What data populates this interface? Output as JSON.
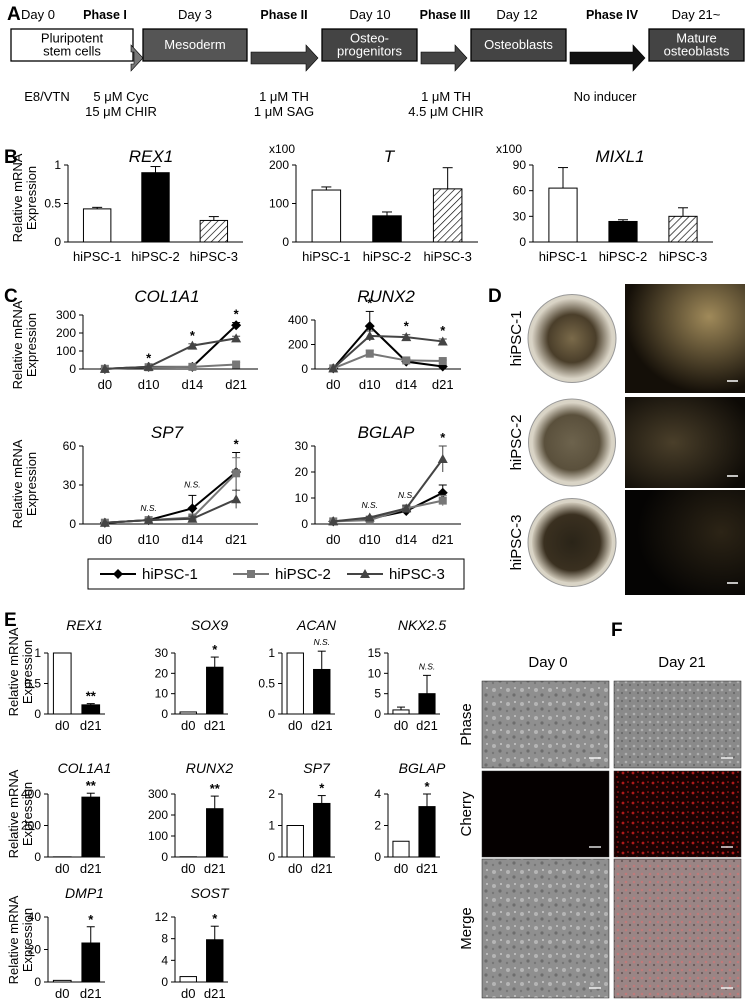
{
  "panel_labels": {
    "A": "A",
    "B": "B",
    "C": "C",
    "D": "D",
    "E": "E",
    "F": "F"
  },
  "flow": {
    "days": [
      "Day 0",
      "Day 3",
      "Day 10",
      "Day 12",
      "Day 21~"
    ],
    "phases": [
      "Phase I",
      "Phase II",
      "Phase III",
      "Phase IV"
    ],
    "boxes": [
      {
        "lines": [
          "Pluripotent",
          "stem cells"
        ]
      },
      {
        "lines": [
          "Mesoderm"
        ]
      },
      {
        "lines": [
          "Osteo-",
          "progenitors"
        ]
      },
      {
        "lines": [
          "Osteoblasts"
        ]
      },
      {
        "lines": [
          "Mature",
          "osteoblasts"
        ]
      }
    ],
    "conditions": [
      {
        "lines": [
          "E8/VTN"
        ]
      },
      {
        "lines": [
          "5 μM Cyc",
          "15 μM CHIR"
        ]
      },
      {
        "lines": [
          "1 μM TH",
          "1 μM SAG"
        ]
      },
      {
        "lines": [
          "1 μM TH",
          "4.5 μM CHIR"
        ]
      },
      {
        "lines": [
          "No inducer"
        ]
      }
    ]
  },
  "ylabel": [
    "Relative mRNA",
    "Expression"
  ],
  "panel_d": {
    "rows": [
      "hiPSC-1",
      "hiPSC-2",
      "hiPSC-3"
    ]
  },
  "panel_f": {
    "columns": [
      "Day 0",
      "Day 21"
    ],
    "rows": [
      "Phase",
      "Cherry",
      "Merge"
    ]
  },
  "chart_data": [
    {
      "panel": "B",
      "type": "bar",
      "title": "REX1",
      "categories": [
        "hiPSC-1",
        "hiPSC-2",
        "hiPSC-3"
      ],
      "values": [
        0.43,
        0.9,
        0.28
      ],
      "errors": [
        0.02,
        0.08,
        0.05
      ],
      "fills": [
        "white",
        "black",
        "hatch"
      ],
      "ylim": [
        0,
        1
      ],
      "yticks": [
        "0",
        "0.5",
        "1"
      ],
      "multiplier": ""
    },
    {
      "panel": "B",
      "type": "bar",
      "title": "T",
      "categories": [
        "hiPSC-1",
        "hiPSC-2",
        "hiPSC-3"
      ],
      "values": [
        135,
        68,
        138
      ],
      "errors": [
        8,
        10,
        55
      ],
      "fills": [
        "white",
        "black",
        "hatch"
      ],
      "ylim": [
        0,
        200
      ],
      "yticks": [
        "0",
        "100",
        "200"
      ],
      "multiplier": "x100"
    },
    {
      "panel": "B",
      "type": "bar",
      "title": "MIXL1",
      "categories": [
        "hiPSC-1",
        "hiPSC-2",
        "hiPSC-3"
      ],
      "values": [
        63,
        24,
        30
      ],
      "errors": [
        24,
        2,
        10
      ],
      "fills": [
        "white",
        "black",
        "hatch"
      ],
      "ylim": [
        0,
        90
      ],
      "yticks": [
        "0",
        "30",
        "60",
        "90"
      ],
      "multiplier": "x100"
    },
    {
      "panel": "C",
      "type": "line",
      "title": "COL1A1",
      "x": [
        "d0",
        "d10",
        "d14",
        "d21"
      ],
      "ylim": [
        0,
        300
      ],
      "yticks": [
        "0",
        "100",
        "200",
        "300"
      ],
      "series": [
        {
          "name": "hiPSC-1",
          "values": [
            1,
            12,
            12,
            243
          ],
          "errors": [
            0,
            3,
            3,
            15
          ]
        },
        {
          "name": "hiPSC-2",
          "values": [
            1,
            10,
            12,
            25
          ],
          "errors": [
            0,
            3,
            3,
            12
          ]
        },
        {
          "name": "hiPSC-3",
          "values": [
            1,
            12,
            130,
            170
          ],
          "errors": [
            0,
            3,
            10,
            12
          ]
        }
      ],
      "annotations": [
        {
          "x": "d10",
          "text": "*"
        },
        {
          "x": "d14",
          "text": "*"
        },
        {
          "x": "d21",
          "text": "*"
        }
      ]
    },
    {
      "panel": "C",
      "type": "line",
      "title": "RUNX2",
      "x": [
        "d0",
        "d10",
        "d14",
        "d21"
      ],
      "ylim": [
        0,
        400
      ],
      "yticks": [
        "0",
        "200",
        "400"
      ],
      "series": [
        {
          "name": "hiPSC-1",
          "values": [
            5,
            350,
            60,
            20
          ],
          "errors": [
            0,
            120,
            20,
            5
          ]
        },
        {
          "name": "hiPSC-2",
          "values": [
            5,
            125,
            70,
            65
          ],
          "errors": [
            0,
            30,
            15,
            8
          ]
        },
        {
          "name": "hiPSC-3",
          "values": [
            5,
            270,
            260,
            225
          ],
          "errors": [
            0,
            40,
            20,
            20
          ]
        }
      ],
      "annotations": [
        {
          "x": "d10",
          "text": "*"
        },
        {
          "x": "d14",
          "text": "*"
        },
        {
          "x": "d21",
          "text": "*"
        }
      ]
    },
    {
      "panel": "C",
      "type": "line",
      "title": "SP7",
      "x": [
        "d0",
        "d10",
        "d14",
        "d21"
      ],
      "ylim": [
        0,
        60
      ],
      "yticks": [
        "0",
        "30",
        "60"
      ],
      "series": [
        {
          "name": "hiPSC-1",
          "values": [
            1,
            3,
            12,
            40
          ],
          "errors": [
            0,
            1,
            10,
            15
          ]
        },
        {
          "name": "hiPSC-2",
          "values": [
            1,
            3,
            5,
            39
          ],
          "errors": [
            0,
            1,
            2,
            12
          ]
        },
        {
          "name": "hiPSC-3",
          "values": [
            1,
            3,
            4,
            19
          ],
          "errors": [
            0,
            1,
            2,
            7
          ]
        }
      ],
      "annotations": [
        {
          "x": "d10",
          "text": "N.S."
        },
        {
          "x": "d14",
          "text": "N.S."
        },
        {
          "x": "d21",
          "text": "*"
        }
      ]
    },
    {
      "panel": "C",
      "type": "line",
      "title": "BGLAP",
      "x": [
        "d0",
        "d10",
        "d14",
        "d21"
      ],
      "ylim": [
        0,
        30
      ],
      "yticks": [
        "0",
        "10",
        "20",
        "30"
      ],
      "series": [
        {
          "name": "hiPSC-1",
          "values": [
            1,
            2,
            5,
            12
          ],
          "errors": [
            0,
            0.5,
            1,
            3
          ]
        },
        {
          "name": "hiPSC-2",
          "values": [
            1,
            1.5,
            6,
            9
          ],
          "errors": [
            0,
            0.5,
            1,
            2
          ]
        },
        {
          "name": "hiPSC-3",
          "values": [
            1,
            2.5,
            6,
            25
          ],
          "errors": [
            0,
            0.5,
            1,
            5
          ]
        }
      ],
      "annotations": [
        {
          "x": "d10",
          "text": "N.S."
        },
        {
          "x": "d14",
          "text": "N.S."
        },
        {
          "x": "d21",
          "text": "*"
        }
      ]
    },
    {
      "panel": "E",
      "type": "bar",
      "title": "REX1",
      "categories": [
        "d0",
        "d21"
      ],
      "values": [
        1,
        0.15
      ],
      "errors": [
        0,
        0.02
      ],
      "ylim": [
        0,
        1
      ],
      "yticks": [
        "0",
        "0.5",
        "1"
      ],
      "annotation": "**"
    },
    {
      "panel": "E",
      "type": "bar",
      "title": "SOX9",
      "categories": [
        "d0",
        "d21"
      ],
      "values": [
        1,
        23
      ],
      "errors": [
        0,
        5
      ],
      "ylim": [
        0,
        30
      ],
      "yticks": [
        "0",
        "10",
        "20",
        "30"
      ],
      "annotation": "*"
    },
    {
      "panel": "E",
      "type": "bar",
      "title": "ACAN",
      "categories": [
        "d0",
        "d21"
      ],
      "values": [
        1,
        0.73
      ],
      "errors": [
        0,
        0.3
      ],
      "ylim": [
        0,
        1
      ],
      "yticks": [
        "0",
        "0.5",
        "1"
      ],
      "annotation": "N.S."
    },
    {
      "panel": "E",
      "type": "bar",
      "title": "NKX2.5",
      "categories": [
        "d0",
        "d21"
      ],
      "values": [
        1,
        5
      ],
      "errors": [
        0.7,
        4.5
      ],
      "ylim": [
        0,
        15
      ],
      "yticks": [
        "0",
        "5",
        "10",
        "15"
      ],
      "annotation": "N.S."
    },
    {
      "panel": "E",
      "type": "bar",
      "title": "COL1A1",
      "categories": [
        "d0",
        "d21"
      ],
      "values": [
        1,
        380
      ],
      "errors": [
        0,
        25
      ],
      "ylim": [
        0,
        400
      ],
      "yticks": [
        "0",
        "200",
        "400"
      ],
      "annotation": "**"
    },
    {
      "panel": "E",
      "type": "bar",
      "title": "RUNX2",
      "categories": [
        "d0",
        "d21"
      ],
      "values": [
        1,
        230
      ],
      "errors": [
        0,
        60
      ],
      "ylim": [
        0,
        300
      ],
      "yticks": [
        "0",
        "100",
        "200",
        "300"
      ],
      "annotation": "**"
    },
    {
      "panel": "E",
      "type": "bar",
      "title": "SP7",
      "categories": [
        "d0",
        "d21"
      ],
      "values": [
        1,
        1.7
      ],
      "errors": [
        0,
        0.25
      ],
      "ylim": [
        0,
        2
      ],
      "yticks": [
        "0",
        "1",
        "2"
      ],
      "annotation": "*"
    },
    {
      "panel": "E",
      "type": "bar",
      "title": "BGLAP",
      "categories": [
        "d0",
        "d21"
      ],
      "values": [
        1,
        3.2
      ],
      "errors": [
        0,
        0.8
      ],
      "ylim": [
        0,
        4
      ],
      "yticks": [
        "0",
        "2",
        "4"
      ],
      "annotation": "*"
    },
    {
      "panel": "E",
      "type": "bar",
      "title": "DMP1",
      "categories": [
        "d0",
        "d21"
      ],
      "values": [
        1,
        24
      ],
      "errors": [
        0,
        10
      ],
      "ylim": [
        0,
        40
      ],
      "yticks": [
        "0",
        "20",
        "40"
      ],
      "annotation": "*"
    },
    {
      "panel": "E",
      "type": "bar",
      "title": "SOST",
      "categories": [
        "d0",
        "d21"
      ],
      "values": [
        1,
        7.8
      ],
      "errors": [
        0,
        2.5
      ],
      "ylim": [
        0,
        12
      ],
      "yticks": [
        "0",
        "4",
        "8",
        "12"
      ],
      "annotation": "*"
    }
  ]
}
